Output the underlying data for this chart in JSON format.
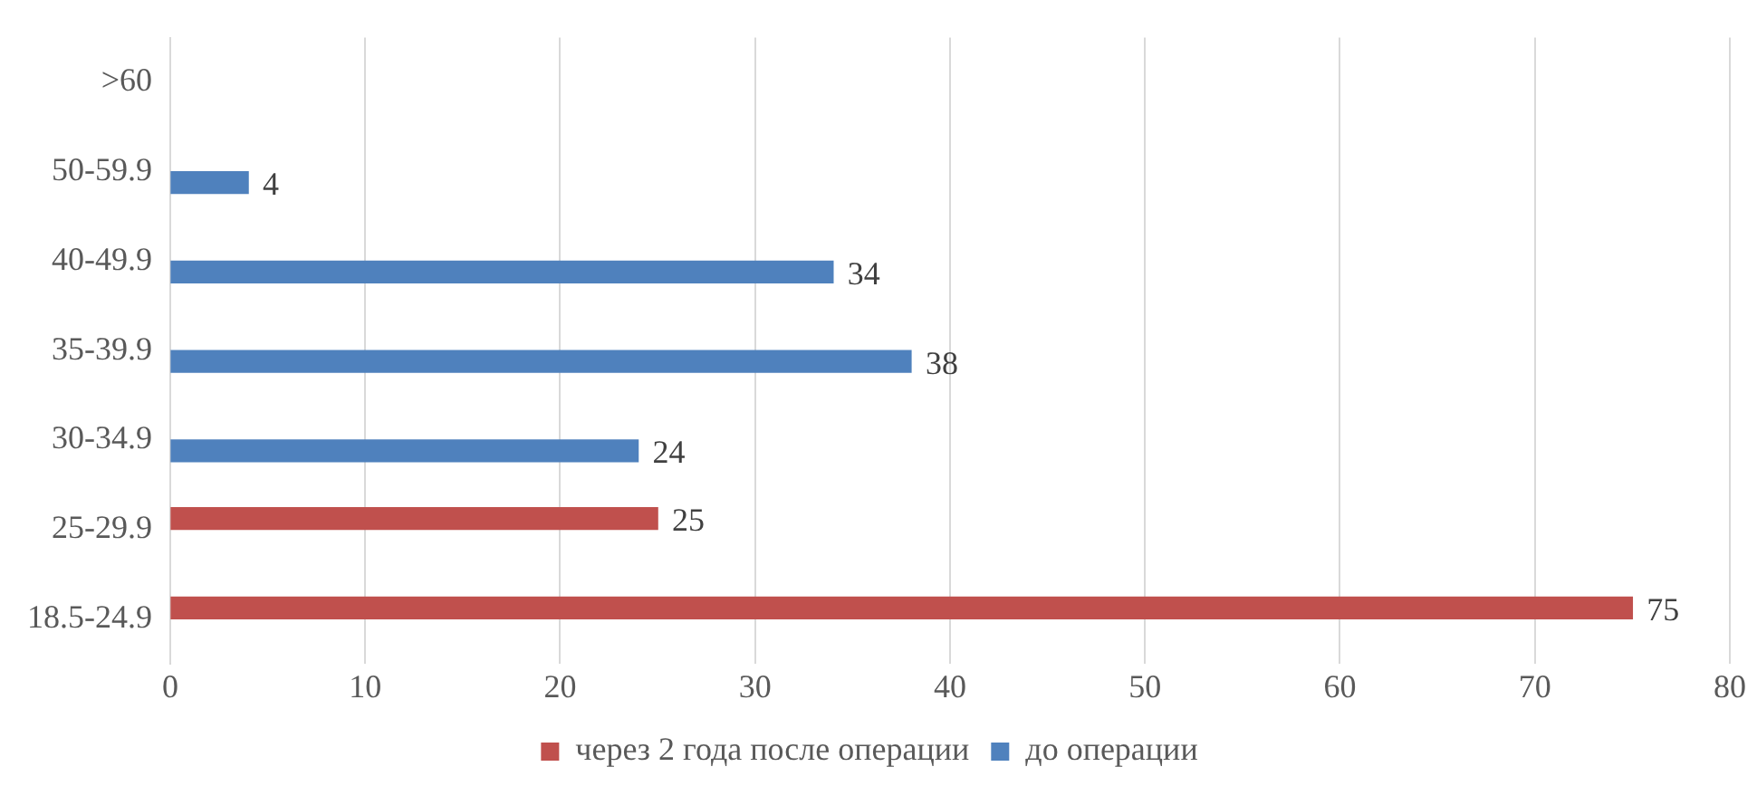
{
  "chart_data": {
    "type": "bar",
    "orientation": "horizontal",
    "categories": [
      ">60",
      "50-59.9",
      "40-49.9",
      "35-39.9",
      "30-34.9",
      "25-29.9",
      "18.5-24.9"
    ],
    "series": [
      {
        "name": "через 2 года после операции",
        "color": "#c0504d",
        "values": [
          null,
          null,
          null,
          null,
          null,
          25,
          75
        ]
      },
      {
        "name": "до операции",
        "color": "#4f81bd",
        "values": [
          null,
          4,
          34,
          38,
          24,
          null,
          null
        ]
      }
    ],
    "xlim": [
      0,
      80
    ],
    "xticks": [
      0,
      10,
      20,
      30,
      40,
      50,
      60,
      70,
      80
    ],
    "grid": "x",
    "legend": "bottom",
    "data_labels": true
  }
}
